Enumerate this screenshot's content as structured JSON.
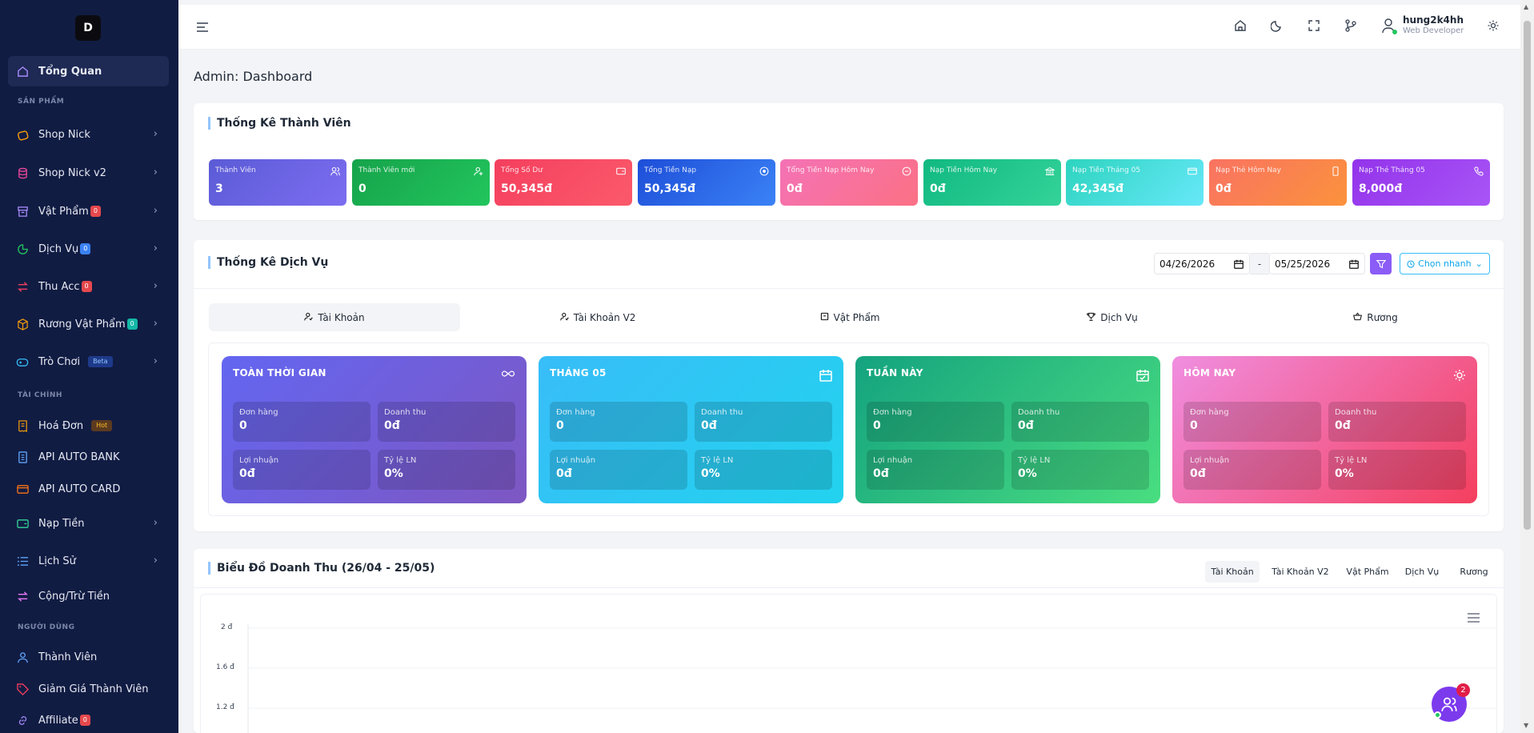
{
  "sidebar": {
    "logo": "D",
    "items": [
      {
        "label": "Tổng Quan",
        "badge": ""
      },
      {
        "label": "Shop Nick",
        "badge": ""
      },
      {
        "label": "Shop Nick v2",
        "badge": ""
      },
      {
        "label": "Vật Phẩm",
        "badge": "0"
      },
      {
        "label": "Dịch Vụ",
        "badge": "0"
      },
      {
        "label": "Thu Acc",
        "badge": "0"
      },
      {
        "label": "Rương Vật Phẩm",
        "badge": "0"
      },
      {
        "label": "Trò Chơi",
        "badge": "Beta"
      },
      {
        "label": "Hoá Đơn",
        "badge": "Hot"
      },
      {
        "label": "API AUTO BANK",
        "badge": ""
      },
      {
        "label": "API AUTO CARD",
        "badge": ""
      },
      {
        "label": "Nạp Tiền",
        "badge": ""
      },
      {
        "label": "Lịch Sử",
        "badge": ""
      },
      {
        "label": "Cộng/Trừ Tiền",
        "badge": ""
      },
      {
        "label": "Thành Viên",
        "badge": ""
      },
      {
        "label": "Giảm Giá Thành Viên",
        "badge": ""
      },
      {
        "label": "Affiliate",
        "badge": "0"
      }
    ],
    "categories": [
      "SẢN PHẨM",
      "TÀI CHÍNH",
      "NGƯỜI DÙNG"
    ]
  },
  "header": {
    "user_name": "hung2k4hh",
    "user_role": "Web Developer"
  },
  "page_title": "Admin: Dashboard",
  "members": {
    "title": "Thống Kê Thành Viên",
    "stats": [
      {
        "label": "Thành Viên",
        "value": "3"
      },
      {
        "label": "Thành Viên mới",
        "value": "0"
      },
      {
        "label": "Tổng Số Dư",
        "value": "50,345đ"
      },
      {
        "label": "Tổng Tiền Nạp",
        "value": "50,345đ"
      },
      {
        "label": "Tổng Tiền Nạp Hôm Nay",
        "value": "0đ"
      },
      {
        "label": "Nạp Tiền Hôm Nay",
        "value": "0đ"
      },
      {
        "label": "Nạp Tiền Tháng 05",
        "value": "42,345đ"
      },
      {
        "label": "Nạp Thẻ Hôm Nay",
        "value": "0đ"
      },
      {
        "label": "Nạp Thẻ Tháng 05",
        "value": "8,000đ"
      }
    ]
  },
  "services": {
    "title": "Thống Kê Dịch Vụ",
    "date_from": "04/26/2026",
    "date_to": "05/25/2026",
    "date_sep": "-",
    "quick_label": "Chọn nhanh",
    "tabs": [
      "Tài Khoản",
      "Tài Khoản V2",
      "Vật Phẩm",
      "Dịch Vụ",
      "Rương"
    ],
    "periods": [
      {
        "title": "TOÀN THỜI GIAN",
        "orders_label": "Đơn hàng",
        "orders": "0",
        "revenue_label": "Doanh thu",
        "revenue": "0đ",
        "profit_label": "Lợi nhuận",
        "profit": "0đ",
        "ratio_label": "Tỷ lệ LN",
        "ratio": "0%"
      },
      {
        "title": "THÁNG 05",
        "orders_label": "Đơn hàng",
        "orders": "0",
        "revenue_label": "Doanh thu",
        "revenue": "0đ",
        "profit_label": "Lợi nhuận",
        "profit": "0đ",
        "ratio_label": "Tỷ lệ LN",
        "ratio": "0%"
      },
      {
        "title": "TUẦN NÀY",
        "orders_label": "Đơn hàng",
        "orders": "0",
        "revenue_label": "Doanh thu",
        "revenue": "0đ",
        "profit_label": "Lợi nhuận",
        "profit": "0đ",
        "ratio_label": "Tỷ lệ LN",
        "ratio": "0%"
      },
      {
        "title": "HÔM NAY",
        "orders_label": "Đơn hàng",
        "orders": "0",
        "revenue_label": "Doanh thu",
        "revenue": "0đ",
        "profit_label": "Lợi nhuận",
        "profit": "0đ",
        "ratio_label": "Tỷ lệ LN",
        "ratio": "0%"
      }
    ]
  },
  "revenue_chart": {
    "title": "Biểu Đồ Doanh Thu (26/04 - 25/05)",
    "tabs": [
      "Tài Khoản",
      "Tài Khoản V2",
      "Vật Phẩm",
      "Dịch Vụ",
      "Rương"
    ],
    "y_ticks": [
      "2 đ",
      "1.6 đ",
      "1.2 đ"
    ]
  },
  "chat": {
    "badge": "2"
  }
}
